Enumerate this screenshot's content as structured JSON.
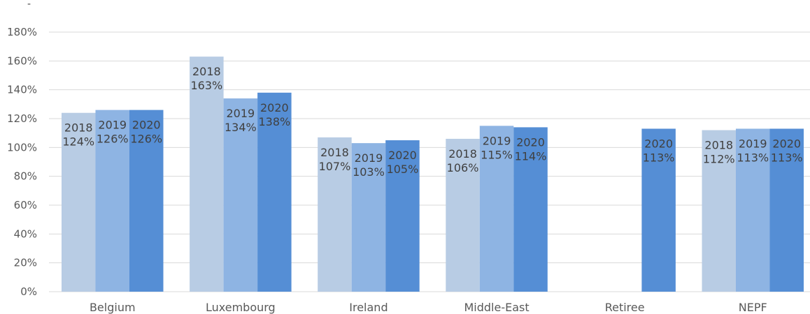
{
  "corner_mark": "-",
  "chart_data": {
    "type": "bar",
    "categories": [
      "Belgium",
      "Luxembourg",
      "Ireland",
      "Middle-East",
      "Retiree",
      "NEPF"
    ],
    "series": [
      {
        "name": "2018",
        "color": "#b8cce4",
        "values": [
          124,
          163,
          107,
          106,
          null,
          112
        ],
        "labels": [
          "124%",
          "163%",
          "107%",
          "106%",
          null,
          "112%"
        ]
      },
      {
        "name": "2019",
        "color": "#8eb4e3",
        "values": [
          126,
          134,
          103,
          115,
          null,
          113
        ],
        "labels": [
          "126%",
          "134%",
          "103%",
          "115%",
          null,
          "113%"
        ]
      },
      {
        "name": "2020",
        "color": "#558ed5",
        "values": [
          126,
          138,
          105,
          114,
          113,
          113
        ],
        "labels": [
          "126%",
          "138%",
          "105%",
          "114%",
          "113%",
          "113%"
        ]
      }
    ],
    "yticks": [
      "0%",
      "20%",
      "40%",
      "60%",
      "80%",
      "100%",
      "120%",
      "140%",
      "160%",
      "180%"
    ],
    "ylim": [
      0,
      180
    ],
    "ystep": 20,
    "title": "",
    "xlabel": "",
    "ylabel": "",
    "grid": true,
    "legend": "none",
    "gridline_color": "#d9d9d9",
    "label_color": "#404040"
  }
}
